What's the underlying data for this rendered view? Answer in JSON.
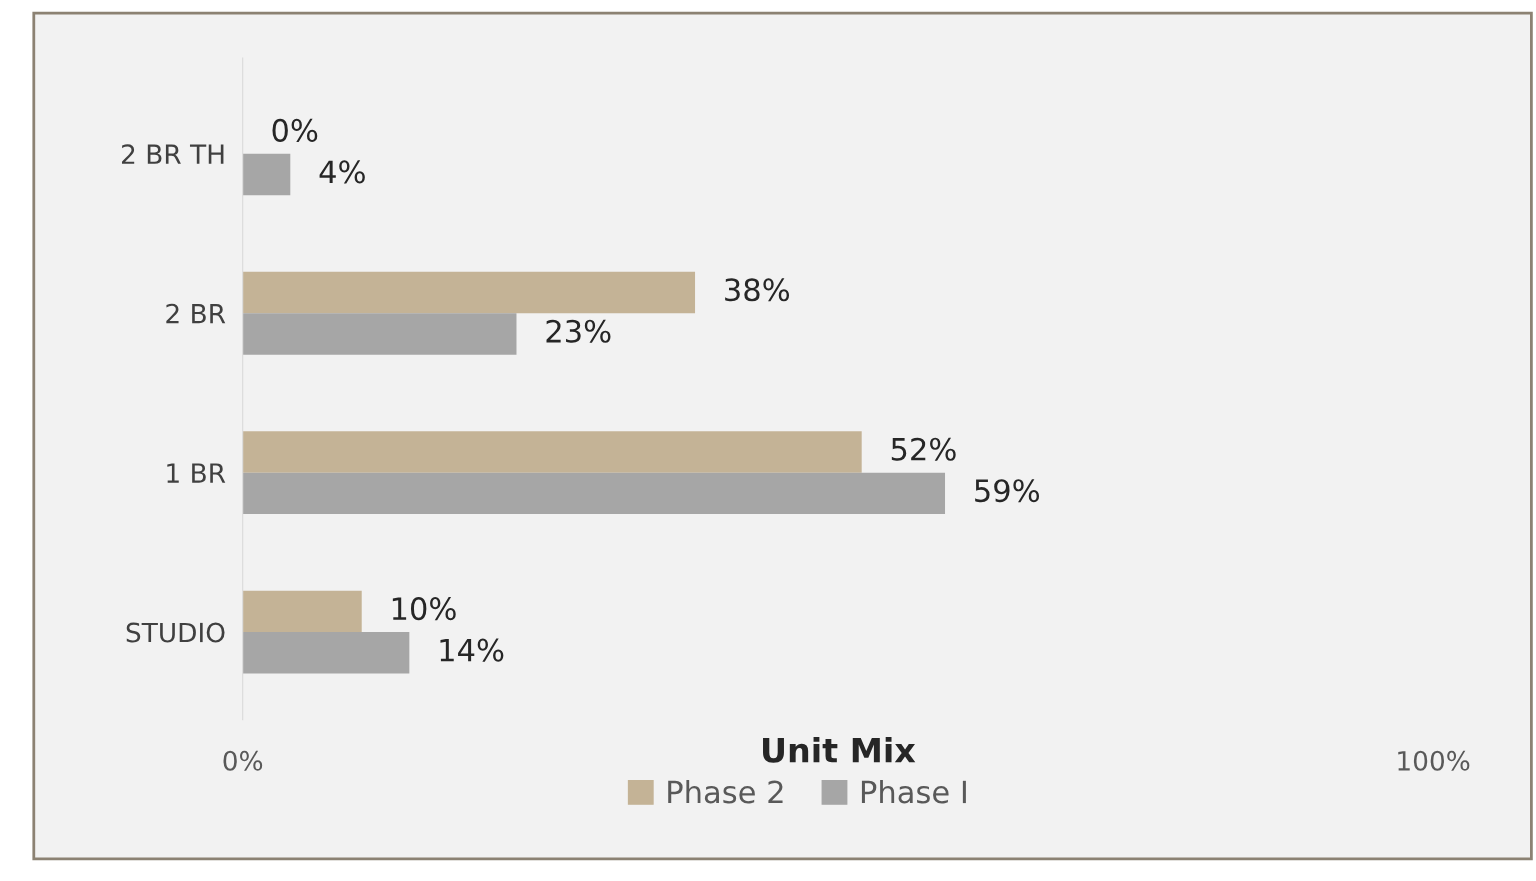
{
  "chart_data": {
    "type": "bar",
    "orientation": "horizontal",
    "xlabel": "Unit Mix",
    "categories": [
      "2 BR TH",
      "2 BR",
      "1 BR",
      "STUDIO"
    ],
    "series": [
      {
        "name": "Phase 2",
        "color": "#c4b396",
        "values": [
          0,
          38,
          52,
          10
        ],
        "value_labels": [
          "0%",
          "38%",
          "52%",
          "10%"
        ]
      },
      {
        "name": "Phase I",
        "color": "#a6a6a6",
        "values": [
          4,
          23,
          59,
          14
        ],
        "value_labels": [
          "4%",
          "23%",
          "59%",
          "14%"
        ]
      }
    ],
    "xlim": [
      0,
      100
    ],
    "xticks": [
      {
        "value": 0,
        "label": "0%"
      },
      {
        "value": 100,
        "label": "100%"
      }
    ],
    "grid": false,
    "legend": "bottom"
  }
}
